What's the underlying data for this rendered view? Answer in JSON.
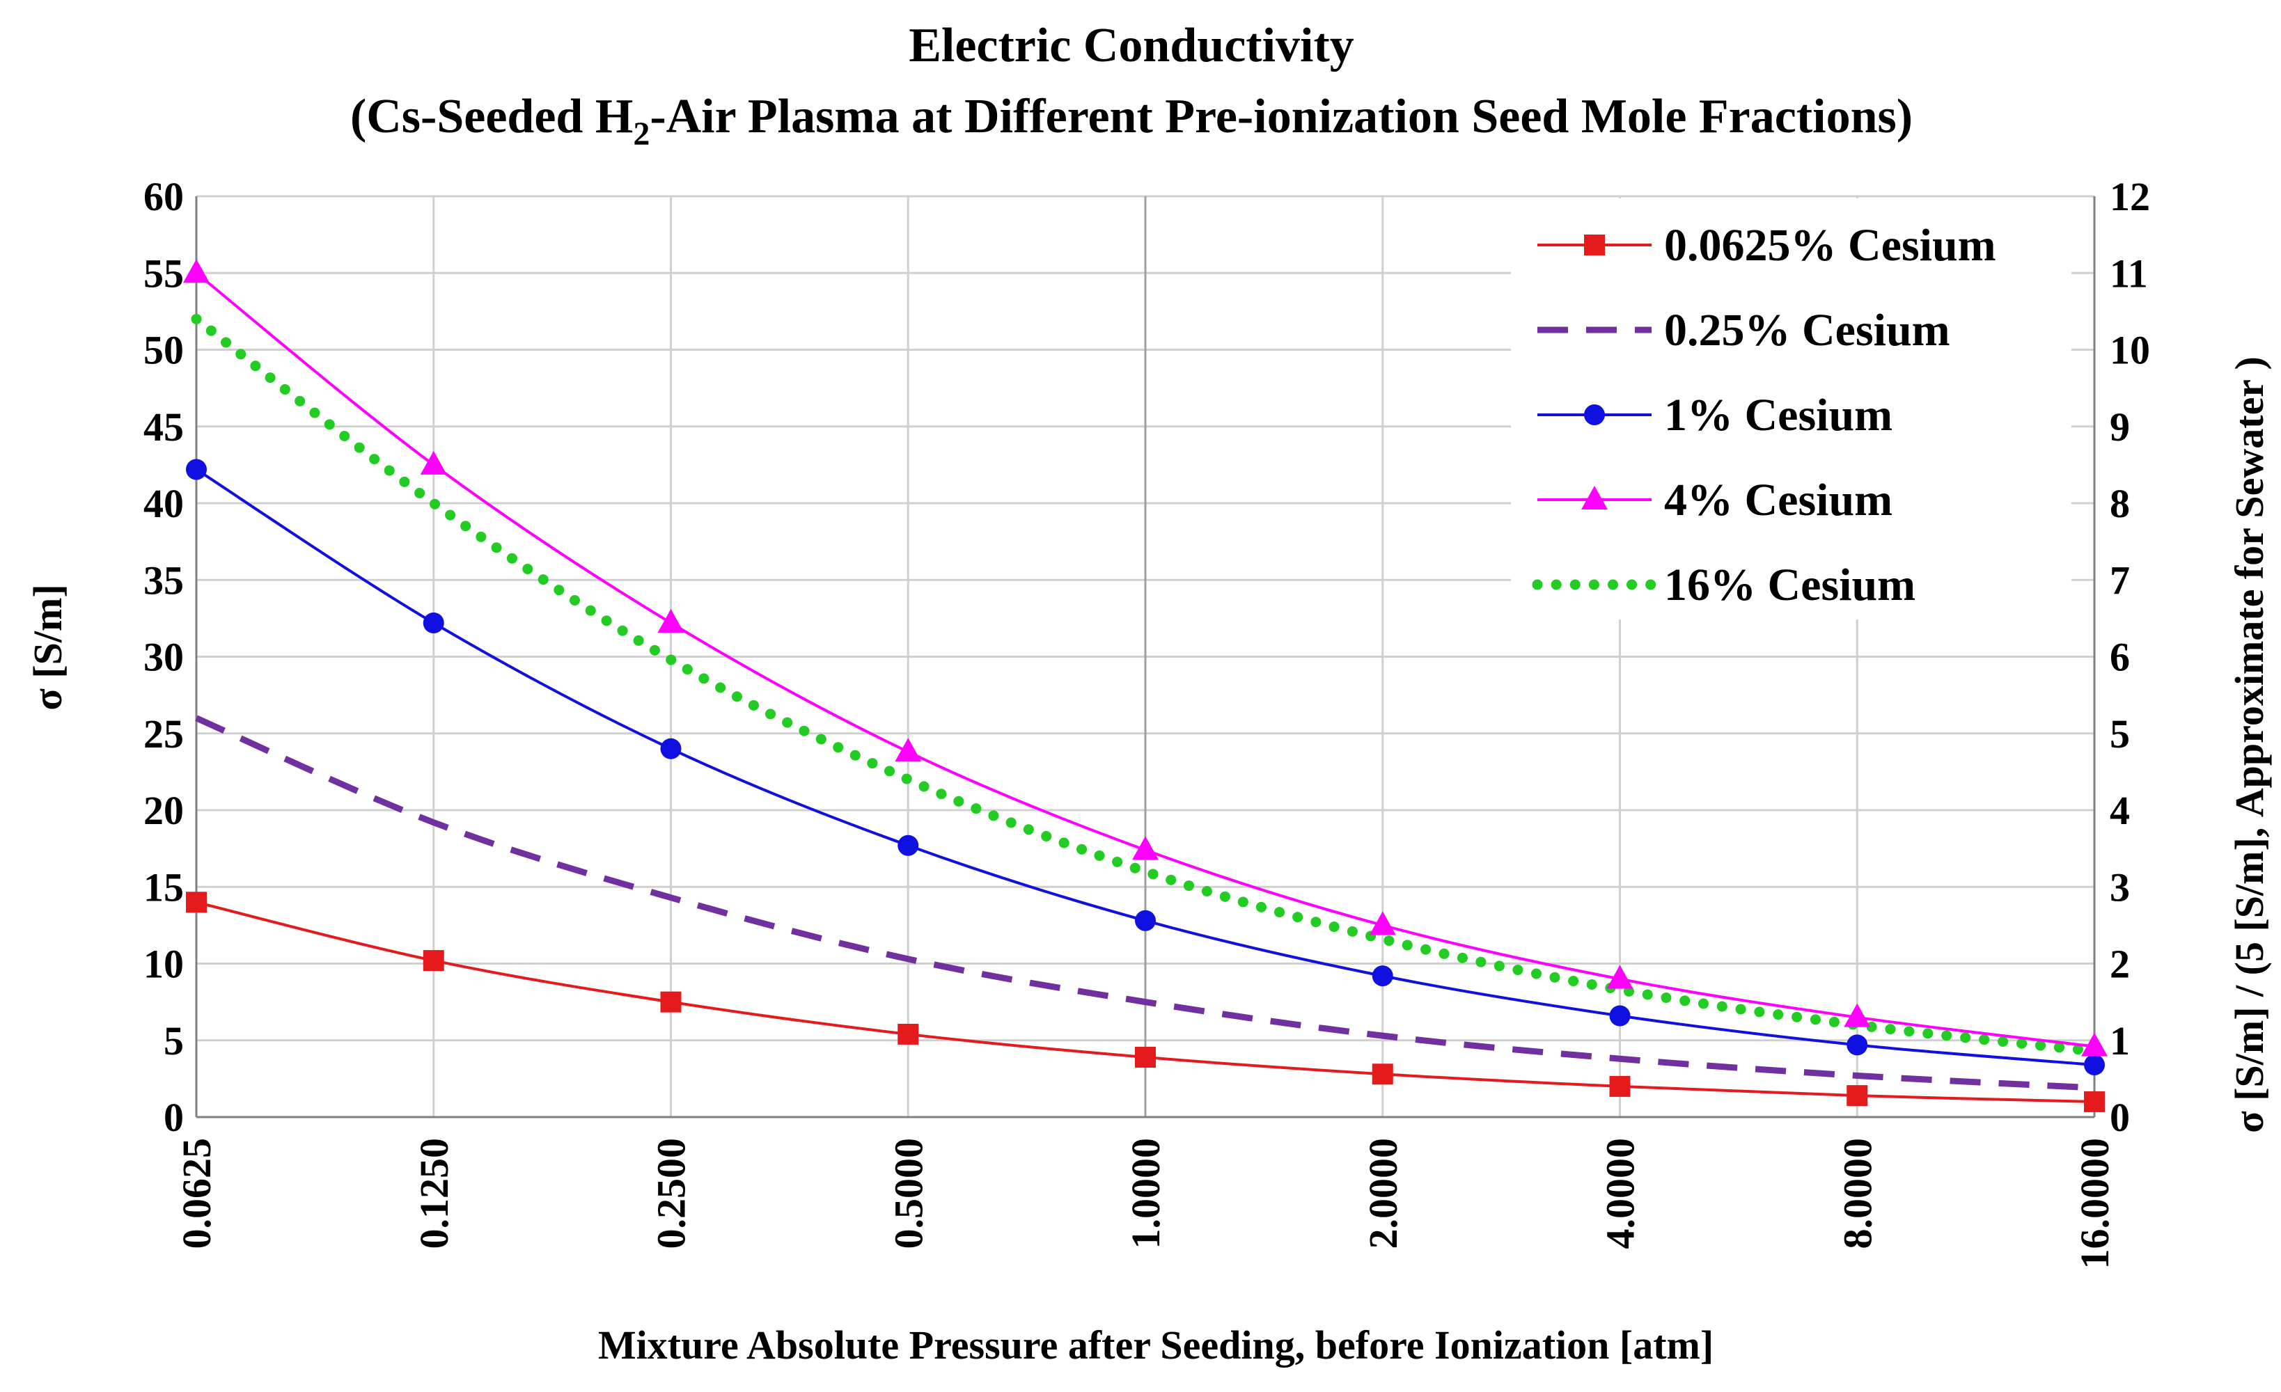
{
  "chart_data": {
    "type": "line",
    "title": "Electric Conductivity",
    "subtitle": {
      "prefix": "(Cs-Seeded H",
      "subscript": "2",
      "suffix": "-Air Plasma at Different Pre-ionization Seed Mole Fractions)"
    },
    "xlabel": "Mixture Absolute Pressure after Seeding, before Ionization [atm]",
    "ylabel": "σ [S/m]",
    "y2label": "σ [S/m] / (5 [S/m], Approximate for Sewater )",
    "categories": [
      "0.0625",
      "0.1250",
      "0.2500",
      "0.5000",
      "1.0000",
      "2.0000",
      "4.0000",
      "8.0000",
      "16.0000"
    ],
    "ylim": [
      0,
      60
    ],
    "yticks": [
      "0",
      "5",
      "10",
      "15",
      "20",
      "25",
      "30",
      "35",
      "40",
      "45",
      "50",
      "55",
      "60"
    ],
    "y2lim": [
      0,
      12
    ],
    "y2ticks": [
      "0",
      "1",
      "2",
      "3",
      "4",
      "5",
      "6",
      "7",
      "8",
      "9",
      "10",
      "11",
      "12"
    ],
    "grid": true,
    "legend_position": "top-right",
    "series": [
      {
        "name": "0.0625% Cesium",
        "color": "#e41a1c",
        "style": "solid",
        "marker": "square",
        "values": [
          14.0,
          10.2,
          7.5,
          5.4,
          3.9,
          2.8,
          2.0,
          1.4,
          1.0
        ]
      },
      {
        "name": "0.25% Cesium",
        "color": "#7030a0",
        "style": "dashed",
        "marker": "none",
        "values": [
          26.0,
          19.2,
          14.3,
          10.3,
          7.5,
          5.3,
          3.8,
          2.7,
          1.9
        ]
      },
      {
        "name": "1% Cesium",
        "color": "#1010e0",
        "style": "solid",
        "marker": "circle",
        "values": [
          42.2,
          32.2,
          24.0,
          17.7,
          12.8,
          9.2,
          6.6,
          4.7,
          3.4
        ]
      },
      {
        "name": "4% Cesium",
        "color": "#ff00ff",
        "style": "solid",
        "marker": "triangle",
        "values": [
          55.0,
          42.5,
          32.2,
          23.8,
          17.4,
          12.5,
          9.0,
          6.5,
          4.6
        ]
      },
      {
        "name": "16% Cesium",
        "color": "#22cc22",
        "style": "dotted",
        "marker": "none",
        "values": [
          52.0,
          40.0,
          29.8,
          22.0,
          16.0,
          11.6,
          8.3,
          6.0,
          4.3
        ]
      }
    ]
  }
}
